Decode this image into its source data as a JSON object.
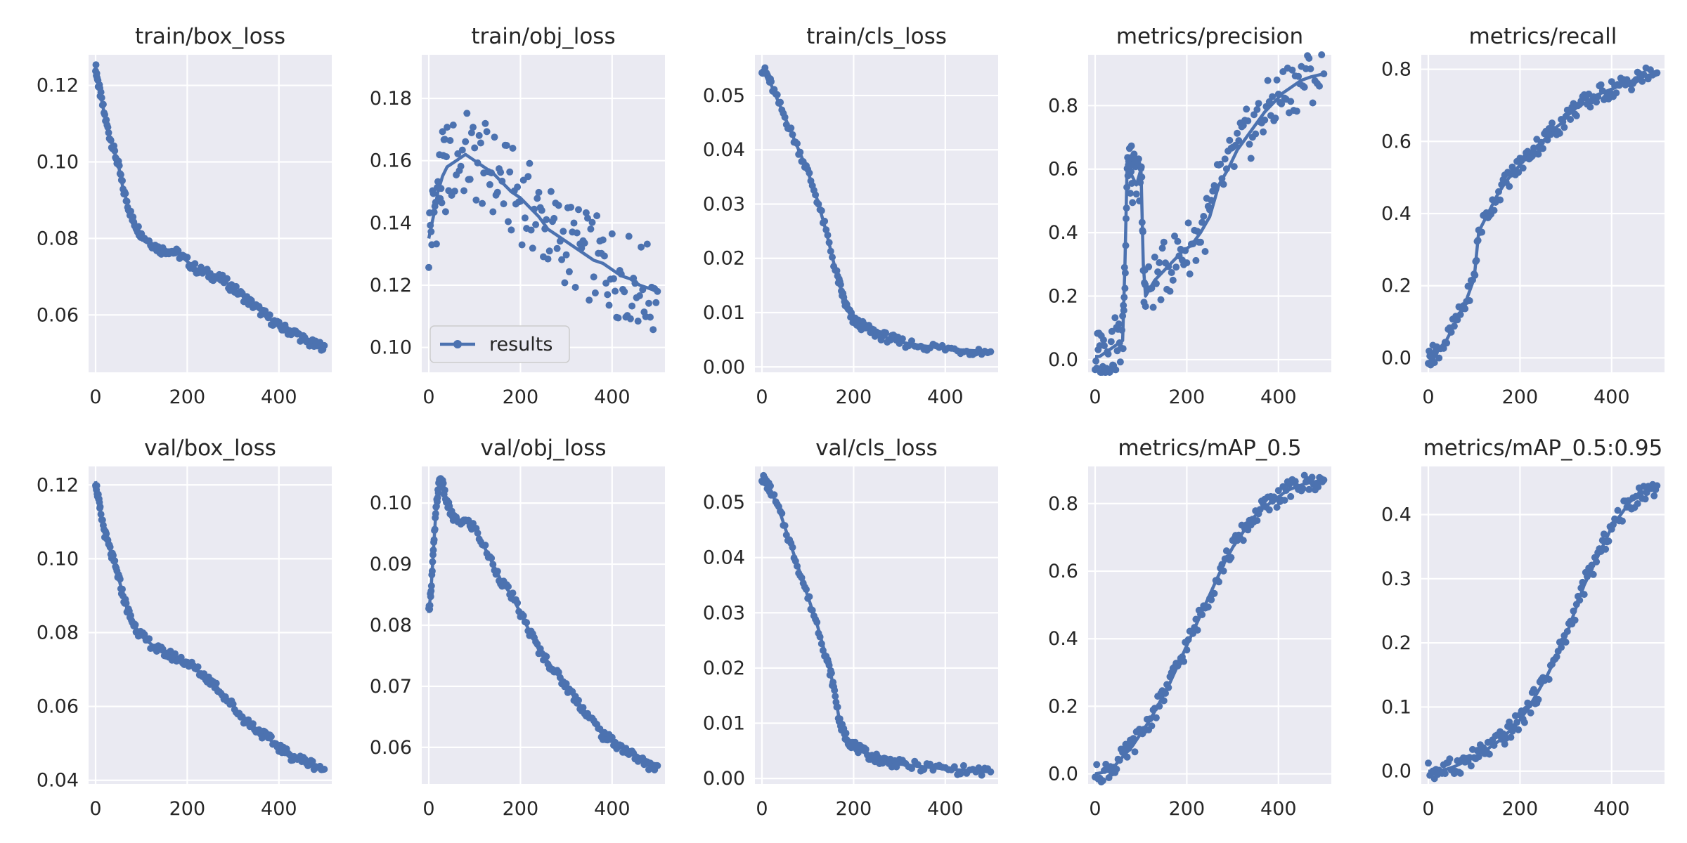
{
  "style": {
    "plot_bg": "#EAEAF2",
    "grid": "#FFFFFF",
    "line": "#4C72B0",
    "text": "#262626"
  },
  "legend": {
    "label": "results",
    "placement": "lower-left",
    "panel": 1
  },
  "chart_data": [
    {
      "type": "line",
      "title": "train/box_loss",
      "xlim": [
        0,
        500
      ],
      "ylim": [
        0.045,
        0.128
      ],
      "xticks": [
        0,
        200,
        400
      ],
      "yticks": [
        0.06,
        0.08,
        0.1,
        0.12
      ],
      "series": [
        {
          "name": "results",
          "x": [
            0,
            5,
            10,
            20,
            30,
            40,
            50,
            60,
            70,
            80,
            90,
            100,
            120,
            140,
            160,
            180,
            200,
            220,
            240,
            260,
            280,
            300,
            320,
            340,
            360,
            380,
            400,
            420,
            440,
            460,
            480,
            499
          ],
          "y": [
            0.125,
            0.121,
            0.118,
            0.112,
            0.107,
            0.103,
            0.099,
            0.093,
            0.089,
            0.085,
            0.083,
            0.081,
            0.079,
            0.077,
            0.077,
            0.076,
            0.074,
            0.072,
            0.071,
            0.07,
            0.069,
            0.067,
            0.065,
            0.063,
            0.061,
            0.059,
            0.057,
            0.056,
            0.055,
            0.053,
            0.052,
            0.052
          ]
        }
      ]
    },
    {
      "type": "line",
      "title": "train/obj_loss",
      "xlim": [
        0,
        500
      ],
      "ylim": [
        0.092,
        0.194
      ],
      "xticks": [
        0,
        200,
        400
      ],
      "yticks": [
        0.1,
        0.12,
        0.14,
        0.16,
        0.18
      ],
      "series": [
        {
          "name": "results",
          "x": [
            0,
            10,
            20,
            30,
            40,
            60,
            80,
            100,
            120,
            140,
            160,
            180,
            200,
            220,
            240,
            260,
            280,
            300,
            320,
            340,
            360,
            380,
            400,
            420,
            440,
            460,
            480,
            499
          ],
          "y": [
            0.135,
            0.142,
            0.15,
            0.155,
            0.158,
            0.16,
            0.162,
            0.16,
            0.158,
            0.156,
            0.153,
            0.15,
            0.148,
            0.145,
            0.142,
            0.138,
            0.136,
            0.134,
            0.132,
            0.13,
            0.128,
            0.127,
            0.125,
            0.123,
            0.122,
            0.12,
            0.119,
            0.118
          ]
        }
      ]
    },
    {
      "type": "line",
      "title": "train/cls_loss",
      "xlim": [
        0,
        500
      ],
      "ylim": [
        -0.001,
        0.0575
      ],
      "xticks": [
        0,
        200,
        400
      ],
      "yticks": [
        0.0,
        0.01,
        0.02,
        0.03,
        0.04,
        0.05
      ],
      "series": [
        {
          "name": "results",
          "x": [
            0,
            10,
            20,
            40,
            60,
            80,
            100,
            120,
            140,
            160,
            170,
            180,
            190,
            200,
            220,
            240,
            260,
            280,
            300,
            340,
            380,
            420,
            460,
            499
          ],
          "y": [
            0.055,
            0.054,
            0.052,
            0.048,
            0.044,
            0.04,
            0.036,
            0.031,
            0.025,
            0.018,
            0.015,
            0.012,
            0.01,
            0.0085,
            0.0075,
            0.0065,
            0.0058,
            0.0052,
            0.0046,
            0.004,
            0.0036,
            0.0032,
            0.003,
            0.0028
          ]
        }
      ]
    },
    {
      "type": "line",
      "title": "metrics/precision",
      "xlim": [
        0,
        500
      ],
      "ylim": [
        -0.04,
        0.96
      ],
      "xticks": [
        0,
        200,
        400
      ],
      "yticks": [
        0.0,
        0.2,
        0.4,
        0.6,
        0.8
      ],
      "series": [
        {
          "name": "results",
          "x": [
            0,
            10,
            20,
            30,
            40,
            50,
            60,
            65,
            70,
            75,
            80,
            90,
            100,
            105,
            110,
            130,
            150,
            170,
            190,
            210,
            230,
            250,
            270,
            290,
            310,
            330,
            350,
            370,
            390,
            410,
            430,
            450,
            470,
            499
          ],
          "y": [
            0.01,
            0.01,
            0.02,
            0.03,
            0.04,
            0.05,
            0.06,
            0.3,
            0.62,
            0.6,
            0.58,
            0.55,
            0.6,
            0.3,
            0.2,
            0.25,
            0.28,
            0.31,
            0.34,
            0.36,
            0.4,
            0.45,
            0.55,
            0.6,
            0.66,
            0.7,
            0.74,
            0.78,
            0.81,
            0.84,
            0.86,
            0.88,
            0.89,
            0.9
          ]
        }
      ]
    },
    {
      "type": "line",
      "title": "metrics/recall",
      "xlim": [
        0,
        500
      ],
      "ylim": [
        -0.04,
        0.84
      ],
      "xticks": [
        0,
        200,
        400
      ],
      "yticks": [
        0.0,
        0.2,
        0.4,
        0.6,
        0.8
      ],
      "series": [
        {
          "name": "results",
          "x": [
            0,
            10,
            20,
            40,
            60,
            80,
            100,
            110,
            130,
            150,
            170,
            190,
            210,
            230,
            250,
            270,
            290,
            310,
            330,
            350,
            370,
            390,
            410,
            430,
            450,
            470,
            499
          ],
          "y": [
            0.0,
            0.01,
            0.02,
            0.05,
            0.1,
            0.15,
            0.22,
            0.35,
            0.4,
            0.45,
            0.49,
            0.52,
            0.55,
            0.58,
            0.6,
            0.63,
            0.65,
            0.68,
            0.7,
            0.71,
            0.73,
            0.74,
            0.75,
            0.76,
            0.77,
            0.78,
            0.79
          ]
        }
      ]
    },
    {
      "type": "line",
      "title": "val/box_loss",
      "xlim": [
        0,
        500
      ],
      "ylim": [
        0.039,
        0.125
      ],
      "xticks": [
        0,
        200,
        400
      ],
      "yticks": [
        0.04,
        0.06,
        0.08,
        0.1,
        0.12
      ],
      "series": [
        {
          "name": "results",
          "x": [
            0,
            5,
            10,
            20,
            30,
            40,
            50,
            60,
            70,
            80,
            90,
            100,
            120,
            140,
            160,
            180,
            200,
            220,
            240,
            260,
            280,
            300,
            320,
            340,
            360,
            380,
            400,
            420,
            440,
            460,
            480,
            499
          ],
          "y": [
            0.121,
            0.117,
            0.113,
            0.107,
            0.103,
            0.099,
            0.095,
            0.09,
            0.086,
            0.083,
            0.081,
            0.079,
            0.077,
            0.075,
            0.074,
            0.073,
            0.072,
            0.07,
            0.068,
            0.066,
            0.063,
            0.06,
            0.057,
            0.055,
            0.053,
            0.051,
            0.049,
            0.047,
            0.046,
            0.045,
            0.044,
            0.043
          ]
        }
      ]
    },
    {
      "type": "line",
      "title": "val/obj_loss",
      "xlim": [
        0,
        500
      ],
      "ylim": [
        0.054,
        0.106
      ],
      "xticks": [
        0,
        200,
        400
      ],
      "yticks": [
        0.06,
        0.07,
        0.08,
        0.09,
        0.1
      ],
      "series": [
        {
          "name": "results",
          "x": [
            0,
            5,
            10,
            15,
            20,
            25,
            30,
            40,
            50,
            60,
            80,
            100,
            120,
            140,
            160,
            180,
            200,
            220,
            240,
            260,
            280,
            300,
            320,
            340,
            360,
            380,
            400,
            420,
            440,
            460,
            480,
            499
          ],
          "y": [
            0.082,
            0.086,
            0.092,
            0.098,
            0.102,
            0.104,
            0.103,
            0.1,
            0.098,
            0.097,
            0.097,
            0.096,
            0.093,
            0.09,
            0.087,
            0.085,
            0.082,
            0.079,
            0.076,
            0.074,
            0.072,
            0.07,
            0.068,
            0.066,
            0.064,
            0.062,
            0.061,
            0.06,
            0.059,
            0.058,
            0.057,
            0.057
          ]
        }
      ]
    },
    {
      "type": "line",
      "title": "val/cls_loss",
      "xlim": [
        0,
        500
      ],
      "ylim": [
        -0.001,
        0.0565
      ],
      "xticks": [
        0,
        200,
        400
      ],
      "yticks": [
        0.0,
        0.01,
        0.02,
        0.03,
        0.04,
        0.05
      ],
      "series": [
        {
          "name": "results",
          "x": [
            0,
            10,
            20,
            40,
            60,
            80,
            100,
            120,
            140,
            150,
            160,
            170,
            180,
            190,
            200,
            220,
            240,
            260,
            280,
            300,
            340,
            380,
            420,
            460,
            499
          ],
          "y": [
            0.0545,
            0.0535,
            0.052,
            0.048,
            0.043,
            0.038,
            0.033,
            0.028,
            0.022,
            0.019,
            0.015,
            0.01,
            0.008,
            0.0068,
            0.006,
            0.0048,
            0.004,
            0.0034,
            0.003,
            0.0026,
            0.0022,
            0.0019,
            0.0016,
            0.0014,
            0.0012
          ]
        }
      ]
    },
    {
      "type": "line",
      "title": "metrics/mAP_0.5",
      "xlim": [
        0,
        500
      ],
      "ylim": [
        -0.03,
        0.91
      ],
      "xticks": [
        0,
        200,
        400
      ],
      "yticks": [
        0.0,
        0.2,
        0.4,
        0.6,
        0.8
      ],
      "series": [
        {
          "name": "results",
          "x": [
            0,
            20,
            40,
            60,
            80,
            100,
            120,
            140,
            160,
            180,
            200,
            220,
            240,
            260,
            280,
            300,
            320,
            340,
            360,
            380,
            400,
            420,
            440,
            460,
            480,
            499
          ],
          "y": [
            0.0,
            0.005,
            0.02,
            0.05,
            0.08,
            0.12,
            0.16,
            0.21,
            0.26,
            0.32,
            0.38,
            0.44,
            0.5,
            0.56,
            0.62,
            0.67,
            0.71,
            0.75,
            0.78,
            0.8,
            0.82,
            0.84,
            0.85,
            0.86,
            0.865,
            0.87
          ]
        }
      ]
    },
    {
      "type": "line",
      "title": "metrics/mAP_0.5:0.95",
      "xlim": [
        0,
        500
      ],
      "ylim": [
        -0.02,
        0.475
      ],
      "xticks": [
        0,
        200,
        400
      ],
      "yticks": [
        0.0,
        0.1,
        0.2,
        0.3,
        0.4
      ],
      "series": [
        {
          "name": "results",
          "x": [
            0,
            20,
            40,
            60,
            80,
            100,
            120,
            140,
            160,
            180,
            200,
            220,
            240,
            260,
            280,
            300,
            320,
            340,
            360,
            380,
            400,
            420,
            440,
            460,
            480,
            499
          ],
          "y": [
            0.0,
            0.0,
            0.003,
            0.008,
            0.015,
            0.022,
            0.03,
            0.04,
            0.05,
            0.065,
            0.08,
            0.1,
            0.125,
            0.15,
            0.18,
            0.21,
            0.25,
            0.29,
            0.32,
            0.35,
            0.38,
            0.4,
            0.42,
            0.43,
            0.44,
            0.445
          ]
        }
      ]
    }
  ]
}
